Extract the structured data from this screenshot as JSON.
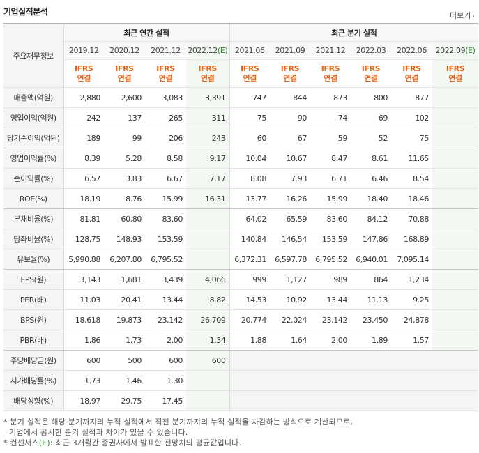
{
  "title": "기업실적분석",
  "more_label": "더보기",
  "header": {
    "row_label": "주요재무정보",
    "annual_group": "최근 연간 실적",
    "quarter_group": "최근 분기 실적",
    "annual_dates": [
      "2019.12",
      "2020.12",
      "2021.12",
      "2022.12"
    ],
    "quarter_dates": [
      "2021.06",
      "2021.09",
      "2021.12",
      "2022.03",
      "2022.06",
      "2022.09"
    ],
    "est_mark": "(E)",
    "ifrs_line1": "IFRS",
    "ifrs_line2": "연결"
  },
  "rows": [
    {
      "label": "매출액(억원)",
      "values": [
        "2,880",
        "2,600",
        "3,083",
        "3,391",
        "747",
        "844",
        "873",
        "800",
        "877",
        ""
      ]
    },
    {
      "label": "영업이익(억원)",
      "values": [
        "242",
        "137",
        "265",
        "311",
        "75",
        "90",
        "74",
        "69",
        "102",
        ""
      ]
    },
    {
      "label": "당기순이익(억원)",
      "values": [
        "189",
        "99",
        "206",
        "243",
        "60",
        "67",
        "59",
        "52",
        "75",
        ""
      ]
    },
    {
      "label": "영업이익률(%)",
      "values": [
        "8.39",
        "5.28",
        "8.58",
        "9.17",
        "10.04",
        "10.67",
        "8.47",
        "8.61",
        "11.65",
        ""
      ]
    },
    {
      "label": "순이익률(%)",
      "values": [
        "6.57",
        "3.83",
        "6.67",
        "7.17",
        "8.08",
        "7.93",
        "6.71",
        "6.46",
        "8.54",
        ""
      ]
    },
    {
      "label": "ROE(%)",
      "values": [
        "18.19",
        "8.76",
        "15.99",
        "16.31",
        "13.77",
        "16.26",
        "15.99",
        "18.40",
        "18.46",
        ""
      ]
    },
    {
      "label": "부채비율(%)",
      "values": [
        "81.81",
        "60.80",
        "83.60",
        "",
        "64.02",
        "65.59",
        "83.60",
        "84.12",
        "70.88",
        ""
      ]
    },
    {
      "label": "당좌비율(%)",
      "values": [
        "128.75",
        "148.93",
        "153.59",
        "",
        "140.84",
        "146.54",
        "153.59",
        "147.86",
        "168.89",
        ""
      ]
    },
    {
      "label": "유보율(%)",
      "values": [
        "5,990.88",
        "6,207.80",
        "6,795.52",
        "",
        "6,372.31",
        "6,597.78",
        "6,795.52",
        "6,940.01",
        "7,095.14",
        ""
      ]
    },
    {
      "label": "EPS(원)",
      "values": [
        "3,143",
        "1,681",
        "3,439",
        "4,066",
        "999",
        "1,127",
        "989",
        "864",
        "1,234",
        ""
      ]
    },
    {
      "label": "PER(배)",
      "values": [
        "11.03",
        "20.41",
        "13.44",
        "8.82",
        "14.53",
        "10.92",
        "13.44",
        "11.13",
        "9.25",
        ""
      ]
    },
    {
      "label": "BPS(원)",
      "values": [
        "18,618",
        "19,873",
        "23,142",
        "26,709",
        "20,774",
        "22,024",
        "23,142",
        "23,450",
        "24,878",
        ""
      ]
    },
    {
      "label": "PBR(배)",
      "values": [
        "1.86",
        "1.73",
        "2.00",
        "1.34",
        "1.88",
        "1.64",
        "2.00",
        "1.89",
        "1.57",
        ""
      ]
    },
    {
      "label": "주당배당금(원)",
      "values": [
        "600",
        "500",
        "600",
        "600",
        "",
        "",
        "",
        "",
        "",
        ""
      ]
    },
    {
      "label": "시가배당률(%)",
      "values": [
        "1.73",
        "1.46",
        "1.30",
        "",
        "",
        "",
        "",
        "",
        "",
        ""
      ]
    },
    {
      "label": "배당성향(%)",
      "values": [
        "18.97",
        "29.75",
        "17.45",
        "",
        "",
        "",
        "",
        "",
        "",
        ""
      ]
    }
  ],
  "notes": {
    "line1": "* 분기 실적은 해당 분기까지의 누적 실적에서 직전 분기까지의 누적 실적을 차감하는 방식으로 계산되므로,",
    "line2": "기업에서 공시한 분기 실적과 차이가 있을 수 있습니다.",
    "line3_prefix": "* 컨센서스",
    "line3_mark": "(E)",
    "line3_suffix": ": 최근 3개월간 증권사에서 발표한 전망치의 평균값입니다."
  },
  "colors": {
    "ifrs": "#e8661c",
    "estimate": "#2f8a2f",
    "estimate_bg": "#f3f9f2"
  }
}
